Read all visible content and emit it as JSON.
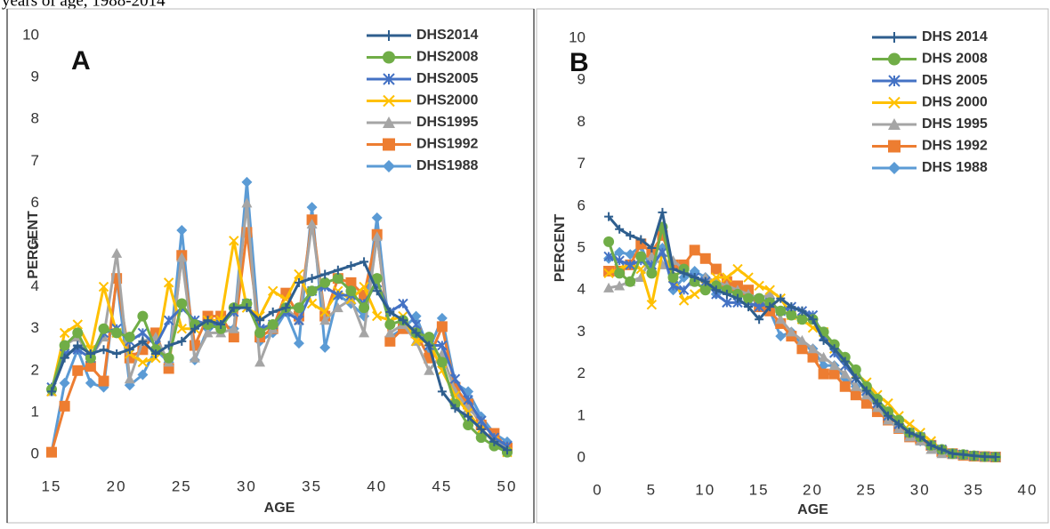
{
  "caption": "years of age, 1988-2014",
  "chart_data": [
    {
      "type": "line",
      "panel": "A",
      "x_label": "AGE",
      "y_label": "PERCENT",
      "xlim": [
        15,
        50
      ],
      "xticks": [
        15,
        20,
        25,
        30,
        35,
        40,
        45,
        50
      ],
      "ylim": [
        0,
        10
      ],
      "yticks": [
        0,
        1,
        2,
        3,
        4,
        5,
        6,
        7,
        8,
        9,
        10
      ],
      "x": [
        15,
        16,
        17,
        18,
        19,
        20,
        21,
        22,
        23,
        24,
        25,
        26,
        27,
        28,
        29,
        30,
        31,
        32,
        33,
        34,
        35,
        36,
        37,
        38,
        39,
        40,
        41,
        42,
        43,
        44,
        45,
        46,
        47,
        48,
        49,
        50
      ],
      "series": [
        {
          "name": "DHS2014",
          "color": "#2e5e8e",
          "marker": "plus",
          "values": [
            1.5,
            2.3,
            2.6,
            2.4,
            2.5,
            2.4,
            2.5,
            2.7,
            2.4,
            2.6,
            2.7,
            3.0,
            3.2,
            3.1,
            3.5,
            3.5,
            3.2,
            3.4,
            3.5,
            4.1,
            4.2,
            4.3,
            4.4,
            4.5,
            4.6,
            3.9,
            3.4,
            3.2,
            2.9,
            2.6,
            1.5,
            1.1,
            0.9,
            0.6,
            0.3,
            0.1
          ]
        },
        {
          "name": "DHS2008",
          "color": "#70ad47",
          "marker": "circle",
          "values": [
            1.55,
            2.6,
            2.9,
            2.3,
            3.0,
            2.9,
            2.8,
            3.3,
            2.5,
            2.3,
            3.6,
            3.1,
            3.1,
            3.0,
            3.5,
            3.6,
            2.9,
            3.1,
            3.5,
            3.5,
            3.9,
            4.1,
            4.2,
            3.9,
            3.5,
            4.2,
            3.1,
            3.2,
            2.9,
            2.8,
            2.2,
            1.2,
            0.7,
            0.4,
            0.2,
            0.05
          ]
        },
        {
          "name": "DHS2005",
          "color": "#4472c4",
          "marker": "star",
          "values": [
            1.6,
            2.4,
            2.5,
            2.3,
            2.9,
            3.0,
            2.7,
            2.9,
            2.6,
            3.2,
            3.5,
            3.2,
            3.1,
            3.1,
            3.4,
            3.6,
            3.0,
            3.1,
            3.4,
            3.2,
            3.9,
            4.0,
            3.8,
            3.8,
            3.6,
            4.1,
            3.4,
            3.6,
            3.1,
            2.6,
            2.6,
            1.8,
            1.3,
            0.8,
            0.4,
            0.2
          ]
        },
        {
          "name": "DHS2000",
          "color": "#ffc000",
          "marker": "cross",
          "values": [
            1.5,
            2.9,
            3.1,
            2.5,
            4.0,
            2.9,
            2.4,
            2.2,
            2.3,
            4.1,
            3.0,
            3.0,
            3.2,
            3.2,
            5.1,
            3.5,
            3.3,
            3.9,
            3.7,
            4.3,
            3.6,
            3.4,
            3.9,
            3.7,
            4.0,
            3.3,
            3.2,
            3.3,
            2.7,
            2.7,
            2.0,
            1.4,
            1.0,
            0.6,
            0.3,
            0.05
          ]
        },
        {
          "name": "DHS1995",
          "color": "#a5a5a5",
          "marker": "triangle",
          "values": [
            1.5,
            2.6,
            2.8,
            2.3,
            2.8,
            4.8,
            1.8,
            2.7,
            2.8,
            2.2,
            4.7,
            2.3,
            2.9,
            2.9,
            3.0,
            6.0,
            2.2,
            3.0,
            3.5,
            3.2,
            5.5,
            3.2,
            3.5,
            3.7,
            2.9,
            5.2,
            2.9,
            3.1,
            2.7,
            2.0,
            2.4,
            1.5,
            1.1,
            0.8,
            0.4,
            0.1
          ]
        },
        {
          "name": "DHS1992",
          "color": "#ed7d31",
          "marker": "square",
          "values": [
            0.05,
            1.15,
            2.0,
            2.1,
            1.75,
            4.2,
            2.3,
            2.5,
            2.9,
            2.05,
            4.75,
            2.6,
            3.3,
            3.3,
            2.8,
            5.3,
            2.8,
            3.0,
            3.85,
            3.3,
            5.6,
            3.3,
            4.2,
            4.1,
            3.8,
            5.25,
            2.7,
            3.0,
            2.9,
            2.3,
            3.05,
            1.6,
            1.2,
            0.7,
            0.5,
            0.15
          ]
        },
        {
          "name": "DHS1988",
          "color": "#5b9bd5",
          "marker": "diamond",
          "values": [
            0.05,
            1.7,
            2.5,
            1.7,
            1.6,
            4.2,
            1.65,
            1.9,
            2.5,
            2.2,
            5.35,
            2.25,
            3.0,
            3.1,
            3.0,
            6.5,
            2.7,
            2.9,
            3.4,
            2.65,
            5.9,
            2.55,
            3.8,
            3.6,
            3.3,
            5.65,
            2.8,
            3.0,
            3.3,
            2.5,
            3.25,
            1.7,
            1.5,
            0.9,
            0.5,
            0.3
          ]
        }
      ]
    },
    {
      "type": "line",
      "panel": "B",
      "x_label": "AGE",
      "y_label": "PERCENT",
      "xlim": [
        0,
        40
      ],
      "xticks": [
        0,
        5,
        10,
        15,
        20,
        25,
        30,
        35,
        40
      ],
      "ylim": [
        0,
        10
      ],
      "yticks": [
        0,
        1,
        2,
        3,
        4,
        5,
        6,
        7,
        8,
        9,
        10
      ],
      "x": [
        1,
        2,
        3,
        4,
        5,
        6,
        7,
        8,
        9,
        10,
        11,
        12,
        13,
        14,
        15,
        16,
        17,
        18,
        19,
        20,
        21,
        22,
        23,
        24,
        25,
        26,
        27,
        28,
        29,
        30,
        31,
        32,
        33,
        34,
        35,
        36,
        37
      ],
      "series": [
        {
          "name": "DHS  2014",
          "color": "#2e5e8e",
          "marker": "plus",
          "values": [
            5.75,
            5.45,
            5.3,
            5.2,
            5.0,
            5.85,
            4.5,
            4.4,
            4.3,
            4.2,
            4.0,
            3.9,
            3.8,
            3.6,
            3.3,
            3.6,
            3.8,
            3.6,
            3.5,
            3.3,
            2.8,
            2.6,
            2.3,
            1.9,
            1.6,
            1.3,
            1.0,
            0.8,
            0.6,
            0.5,
            0.3,
            0.2,
            0.1,
            0.08,
            0.05,
            0.03,
            0.02
          ]
        },
        {
          "name": "DHS  2008",
          "color": "#70ad47",
          "marker": "circle",
          "values": [
            5.15,
            4.4,
            4.2,
            4.8,
            4.4,
            5.5,
            4.3,
            4.5,
            4.2,
            4.0,
            4.1,
            4.0,
            3.9,
            3.8,
            3.8,
            3.7,
            3.5,
            3.4,
            3.3,
            3.3,
            3.0,
            2.7,
            2.4,
            2.1,
            1.7,
            1.4,
            1.1,
            0.9,
            0.6,
            0.5,
            0.3,
            0.2,
            0.1,
            0.08,
            0.05,
            0.03,
            0.02
          ]
        },
        {
          "name": "DHS  2005",
          "color": "#4472c4",
          "marker": "star",
          "values": [
            4.8,
            4.7,
            4.6,
            4.7,
            4.6,
            4.9,
            4.1,
            4.0,
            4.3,
            4.2,
            3.9,
            3.7,
            3.7,
            3.7,
            3.6,
            3.7,
            3.5,
            3.6,
            3.5,
            3.4,
            2.9,
            2.5,
            2.2,
            1.9,
            1.6,
            1.3,
            1.0,
            0.8,
            0.6,
            0.5,
            0.3,
            0.2,
            0.1,
            0.08,
            0.05,
            0.03,
            0.02
          ]
        },
        {
          "name": "DHS  2000",
          "color": "#ffc000",
          "marker": "cross",
          "values": [
            4.4,
            4.5,
            4.6,
            4.5,
            3.65,
            4.9,
            4.3,
            3.75,
            3.9,
            4.1,
            4.3,
            4.3,
            4.5,
            4.3,
            4.1,
            4.0,
            3.8,
            3.4,
            3.3,
            3.1,
            3.0,
            2.6,
            2.2,
            2.0,
            1.8,
            1.5,
            1.3,
            1.0,
            0.8,
            0.6,
            0.4,
            0.2,
            0.1,
            0.08,
            0.05,
            0.03,
            0.02
          ]
        },
        {
          "name": "DHS  1995",
          "color": "#a5a5a5",
          "marker": "triangle",
          "values": [
            4.05,
            4.1,
            4.2,
            4.3,
            4.8,
            4.6,
            4.7,
            4.5,
            4.2,
            4.3,
            4.2,
            4.1,
            4.0,
            3.9,
            3.8,
            3.9,
            3.3,
            3.0,
            2.8,
            2.6,
            2.4,
            2.2,
            2.0,
            1.7,
            1.5,
            1.2,
            0.9,
            0.7,
            0.5,
            0.4,
            0.2,
            0.1,
            0.08,
            0.06,
            0.04,
            0.03,
            0.02
          ]
        },
        {
          "name": "DHS  1992",
          "color": "#ed7d31",
          "marker": "square",
          "values": [
            4.45,
            4.45,
            4.6,
            5.1,
            4.9,
            5.3,
            4.6,
            4.6,
            4.95,
            4.75,
            4.5,
            4.2,
            4.1,
            4.0,
            3.6,
            3.5,
            3.2,
            2.9,
            2.6,
            2.4,
            2.0,
            2.0,
            1.7,
            1.5,
            1.3,
            1.1,
            0.9,
            0.7,
            0.5,
            0.45,
            0.3,
            0.15,
            0.1,
            0.06,
            0.04,
            0.03,
            0.02
          ]
        },
        {
          "name": "DHS  1988",
          "color": "#5b9bd5",
          "marker": "diamond",
          "values": [
            4.75,
            4.9,
            4.85,
            5.05,
            4.45,
            5.0,
            4.0,
            4.3,
            4.45,
            4.3,
            3.9,
            4.2,
            4.1,
            3.8,
            3.7,
            3.5,
            2.9,
            3.0,
            2.7,
            2.6,
            2.2,
            2.2,
            1.9,
            1.7,
            1.5,
            1.2,
            1.0,
            0.8,
            0.6,
            0.4,
            0.3,
            0.15,
            0.1,
            0.06,
            0.04,
            0.03,
            0.02
          ]
        }
      ]
    }
  ]
}
